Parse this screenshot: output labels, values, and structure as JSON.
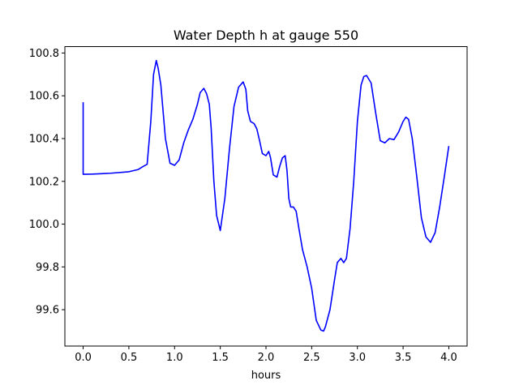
{
  "chart_data": {
    "type": "line",
    "title": "Water Depth h at gauge 550",
    "xlabel": "hours",
    "ylabel": "",
    "xlim": [
      -0.2,
      4.2
    ],
    "ylim": [
      99.43,
      100.83
    ],
    "xticks": [
      0.0,
      0.5,
      1.0,
      1.5,
      2.0,
      2.5,
      3.0,
      3.5,
      4.0
    ],
    "xtick_labels": [
      "0.0",
      "0.5",
      "1.0",
      "1.5",
      "2.0",
      "2.5",
      "3.0",
      "3.5",
      "4.0"
    ],
    "yticks": [
      99.6,
      99.8,
      100.0,
      100.2,
      100.4,
      100.6,
      100.8
    ],
    "ytick_labels": [
      "99.6",
      "99.8",
      "100.0",
      "100.2",
      "100.4",
      "100.6",
      "100.8"
    ],
    "grid": false,
    "legend": "none",
    "series": [
      {
        "color": "#0000ff",
        "x": [
          0.0,
          0.0,
          0.001,
          0.1,
          0.3,
          0.5,
          0.6,
          0.65,
          0.7,
          0.74,
          0.77,
          0.8,
          0.82,
          0.85,
          0.9,
          0.95,
          1.0,
          1.05,
          1.1,
          1.15,
          1.2,
          1.25,
          1.28,
          1.32,
          1.35,
          1.38,
          1.4,
          1.43,
          1.46,
          1.5,
          1.55,
          1.6,
          1.65,
          1.7,
          1.75,
          1.78,
          1.8,
          1.83,
          1.87,
          1.9,
          1.93,
          1.96,
          2.0,
          2.03,
          2.05,
          2.08,
          2.12,
          2.15,
          2.18,
          2.21,
          2.23,
          2.25,
          2.27,
          2.3,
          2.33,
          2.36,
          2.4,
          2.45,
          2.5,
          2.55,
          2.6,
          2.63,
          2.65,
          2.7,
          2.75,
          2.78,
          2.82,
          2.85,
          2.88,
          2.92,
          2.96,
          3.0,
          3.04,
          3.07,
          3.1,
          3.15,
          3.2,
          3.25,
          3.3,
          3.35,
          3.4,
          3.45,
          3.5,
          3.53,
          3.56,
          3.6,
          3.65,
          3.7,
          3.75,
          3.8,
          3.85,
          3.9,
          3.95,
          4.0
        ],
        "y": [
          100.57,
          100.233,
          100.233,
          100.234,
          100.238,
          100.245,
          100.255,
          100.268,
          100.28,
          100.48,
          100.7,
          100.765,
          100.73,
          100.65,
          100.4,
          100.285,
          100.275,
          100.3,
          100.38,
          100.44,
          100.49,
          100.56,
          100.615,
          100.635,
          100.61,
          100.56,
          100.45,
          100.2,
          100.04,
          99.97,
          100.12,
          100.35,
          100.55,
          100.64,
          100.665,
          100.63,
          100.53,
          100.48,
          100.47,
          100.445,
          100.39,
          100.33,
          100.32,
          100.34,
          100.31,
          100.23,
          100.22,
          100.27,
          100.31,
          100.32,
          100.25,
          100.12,
          100.08,
          100.08,
          100.06,
          99.98,
          99.88,
          99.8,
          99.7,
          99.55,
          99.505,
          99.5,
          99.52,
          99.6,
          99.74,
          99.82,
          99.84,
          99.82,
          99.84,
          99.98,
          100.2,
          100.48,
          100.65,
          100.69,
          100.695,
          100.66,
          100.52,
          100.39,
          100.38,
          100.4,
          100.395,
          100.43,
          100.48,
          100.5,
          100.49,
          100.4,
          100.22,
          100.03,
          99.94,
          99.915,
          99.96,
          100.08,
          100.22,
          100.365
        ]
      }
    ]
  }
}
